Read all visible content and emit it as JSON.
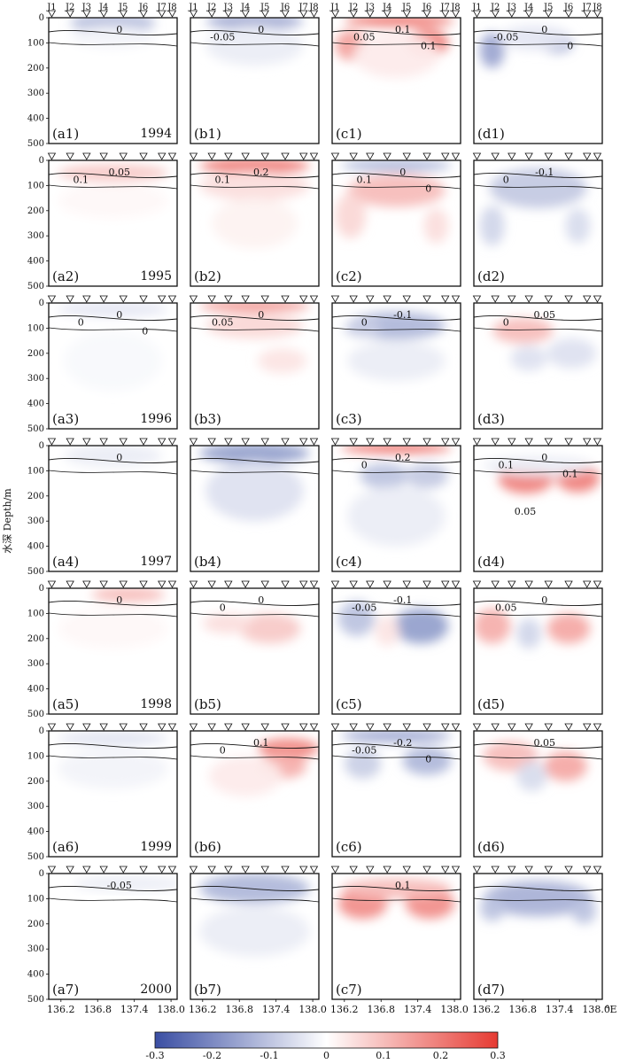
{
  "figure": {
    "ylabel": "水深 Depth/m",
    "depth_ticks": [
      "0",
      "100",
      "200",
      "300",
      "400",
      "500"
    ],
    "station_labels": [
      "J1",
      "J2",
      "J3",
      "J4",
      "J5",
      "J6",
      "J7",
      "J8"
    ],
    "lon_ticks": [
      "136.2",
      "136.8",
      "137.4",
      "138.0"
    ],
    "lon_unit": "°E"
  },
  "colorbar": {
    "ticks": [
      "-0.3",
      "-0.2",
      "-0.1",
      "0",
      "0.1",
      "0.2",
      "0.3"
    ],
    "min_color": "#3a4ea3",
    "mid_color": "#ffffff",
    "max_color": "#e63a32"
  },
  "panels": [
    {
      "id": "a1",
      "label": "(a1)",
      "year": "1994",
      "contours": [
        {
          "text": "0"
        }
      ]
    },
    {
      "id": "b1",
      "label": "(b1)",
      "contours": [
        {
          "text": "0"
        },
        {
          "text": "-0.05"
        }
      ]
    },
    {
      "id": "c1",
      "label": "(c1)",
      "contours": [
        {
          "text": "0.1"
        },
        {
          "text": "0.05"
        },
        {
          "text": "0.1"
        }
      ]
    },
    {
      "id": "d1",
      "label": "(d1)",
      "contours": [
        {
          "text": "0"
        },
        {
          "text": "-0.05"
        },
        {
          "text": "0"
        }
      ]
    },
    {
      "id": "a2",
      "label": "(a2)",
      "year": "1995",
      "contours": [
        {
          "text": "0.05"
        },
        {
          "text": "0.1"
        }
      ]
    },
    {
      "id": "b2",
      "label": "(b2)",
      "contours": [
        {
          "text": "0.2"
        },
        {
          "text": "0.1"
        }
      ]
    },
    {
      "id": "c2",
      "label": "(c2)",
      "contours": [
        {
          "text": "0"
        },
        {
          "text": "0.1"
        },
        {
          "text": "0"
        }
      ]
    },
    {
      "id": "d2",
      "label": "(d2)",
      "contours": [
        {
          "text": "-0.1"
        },
        {
          "text": "0"
        }
      ]
    },
    {
      "id": "a3",
      "label": "(a3)",
      "year": "1996",
      "contours": [
        {
          "text": "0"
        },
        {
          "text": "0"
        },
        {
          "text": "0"
        }
      ]
    },
    {
      "id": "b3",
      "label": "(b3)",
      "contours": [
        {
          "text": "0"
        },
        {
          "text": "0.05"
        }
      ]
    },
    {
      "id": "c3",
      "label": "(c3)",
      "contours": [
        {
          "text": "-0.1"
        },
        {
          "text": "0"
        }
      ]
    },
    {
      "id": "d3",
      "label": "(d3)",
      "contours": [
        {
          "text": "0.05"
        },
        {
          "text": "0"
        }
      ]
    },
    {
      "id": "a4",
      "label": "(a4)",
      "year": "1997",
      "contours": [
        {
          "text": "0"
        }
      ]
    },
    {
      "id": "b4",
      "label": "(b4)",
      "contours": []
    },
    {
      "id": "c4",
      "label": "(c4)",
      "contours": [
        {
          "text": "0.2"
        },
        {
          "text": "0"
        }
      ]
    },
    {
      "id": "d4",
      "label": "(d4)",
      "contours": [
        {
          "text": "0"
        },
        {
          "text": "0.1"
        },
        {
          "text": "0.1"
        },
        {
          "text": "0.05"
        }
      ]
    },
    {
      "id": "a5",
      "label": "(a5)",
      "year": "1998",
      "contours": [
        {
          "text": "0"
        }
      ]
    },
    {
      "id": "b5",
      "label": "(b5)",
      "contours": [
        {
          "text": "0"
        },
        {
          "text": "0"
        }
      ]
    },
    {
      "id": "c5",
      "label": "(c5)",
      "contours": [
        {
          "text": "-0.1"
        },
        {
          "text": "-0.05"
        }
      ]
    },
    {
      "id": "d5",
      "label": "(d5)",
      "contours": [
        {
          "text": "0"
        },
        {
          "text": "0.05"
        }
      ]
    },
    {
      "id": "a6",
      "label": "(a6)",
      "year": "1999",
      "contours": []
    },
    {
      "id": "b6",
      "label": "(b6)",
      "contours": [
        {
          "text": "0.1"
        },
        {
          "text": "0"
        }
      ]
    },
    {
      "id": "c6",
      "label": "(c6)",
      "contours": [
        {
          "text": "-0.2"
        },
        {
          "text": "-0.05"
        },
        {
          "text": "0"
        }
      ]
    },
    {
      "id": "d6",
      "label": "(d6)",
      "contours": [
        {
          "text": "0.05"
        }
      ]
    },
    {
      "id": "a7",
      "label": "(a7)",
      "year": "2000",
      "contours": [
        {
          "text": "-0.05"
        }
      ]
    },
    {
      "id": "b7",
      "label": "(b7)",
      "contours": []
    },
    {
      "id": "c7",
      "label": "(c7)",
      "contours": [
        {
          "text": "0.1"
        }
      ]
    },
    {
      "id": "d7",
      "label": "(d7)",
      "contours": []
    }
  ],
  "chart_data": {
    "type": "heatmap",
    "xlabel": "°E",
    "ylabel": "水深 Depth/m",
    "xlim": [
      136.0,
      138.1
    ],
    "ylim": [
      500,
      0
    ],
    "x_ticks": [
      136.2,
      136.8,
      137.4,
      138.0
    ],
    "y_ticks": [
      0,
      100,
      200,
      300,
      400,
      500
    ],
    "color_range": [
      -0.3,
      0.3
    ],
    "colorbar_ticks": [
      -0.3,
      -0.2,
      -0.1,
      0,
      0.1,
      0.2,
      0.3
    ],
    "station_x": [
      136.05,
      136.35,
      136.62,
      136.9,
      137.22,
      137.55,
      137.85,
      138.02
    ],
    "panels": [
      {
        "panel": "a1",
        "blobs": [
          [
            137.05,
            20,
            0.7,
            35,
            -0.12
          ],
          [
            137.05,
            75,
            0.7,
            45,
            -0.02
          ]
        ]
      },
      {
        "panel": "b1",
        "blobs": [
          [
            137.05,
            15,
            0.8,
            30,
            -0.15
          ],
          [
            137.05,
            110,
            0.8,
            80,
            -0.03
          ]
        ]
      },
      {
        "panel": "c1",
        "blobs": [
          [
            137.1,
            12,
            0.9,
            25,
            0.2
          ],
          [
            136.3,
            110,
            0.25,
            60,
            0.14
          ],
          [
            137.55,
            100,
            0.35,
            55,
            0.2
          ],
          [
            137.05,
            150,
            0.7,
            90,
            0.03
          ]
        ]
      },
      {
        "panel": "d1",
        "blobs": [
          [
            136.3,
            130,
            0.2,
            70,
            -0.15
          ],
          [
            137.35,
            100,
            0.28,
            40,
            -0.14
          ],
          [
            137.0,
            80,
            0.6,
            50,
            -0.04
          ]
        ]
      },
      {
        "panel": "a2",
        "blobs": [
          [
            137.05,
            50,
            0.9,
            35,
            0.08
          ],
          [
            137.05,
            160,
            0.9,
            70,
            0.01
          ]
        ]
      },
      {
        "panel": "b2",
        "blobs": [
          [
            137.05,
            22,
            0.9,
            28,
            0.22
          ],
          [
            137.05,
            100,
            0.9,
            60,
            0.05
          ],
          [
            137.05,
            250,
            0.7,
            100,
            0.02
          ]
        ]
      },
      {
        "panel": "c2",
        "blobs": [
          [
            137.05,
            20,
            0.9,
            25,
            -0.12
          ],
          [
            137.05,
            120,
            0.8,
            65,
            0.1
          ],
          [
            136.3,
            220,
            0.25,
            90,
            0.06
          ],
          [
            137.7,
            260,
            0.2,
            70,
            0.05
          ]
        ]
      },
      {
        "panel": "d2",
        "blobs": [
          [
            137.05,
            110,
            0.8,
            80,
            -0.09
          ],
          [
            136.3,
            260,
            0.2,
            80,
            -0.07
          ],
          [
            137.7,
            260,
            0.2,
            70,
            -0.06
          ]
        ]
      },
      {
        "panel": "a3",
        "blobs": [
          [
            137.05,
            25,
            0.9,
            30,
            -0.04
          ],
          [
            137.05,
            230,
            0.8,
            120,
            -0.01
          ]
        ]
      },
      {
        "panel": "b3",
        "blobs": [
          [
            137.05,
            12,
            0.9,
            20,
            0.18
          ],
          [
            137.05,
            90,
            0.8,
            50,
            0.06
          ],
          [
            137.5,
            230,
            0.4,
            50,
            0.04
          ]
        ]
      },
      {
        "panel": "c3",
        "blobs": [
          [
            137.05,
            90,
            0.8,
            55,
            -0.12
          ],
          [
            136.5,
            100,
            0.3,
            35,
            -0.08
          ],
          [
            137.05,
            230,
            0.8,
            80,
            -0.03
          ]
        ]
      },
      {
        "panel": "d3",
        "blobs": [
          [
            136.8,
            110,
            0.5,
            50,
            0.1
          ],
          [
            137.6,
            200,
            0.4,
            60,
            -0.05
          ],
          [
            136.9,
            220,
            0.3,
            50,
            -0.05
          ]
        ]
      },
      {
        "panel": "a4",
        "blobs": [
          [
            137.05,
            40,
            0.8,
            45,
            -0.03
          ]
        ]
      },
      {
        "panel": "b4",
        "blobs": [
          [
            137.05,
            30,
            0.9,
            40,
            -0.16
          ],
          [
            137.05,
            180,
            0.8,
            120,
            -0.05
          ]
        ]
      },
      {
        "panel": "c4",
        "blobs": [
          [
            137.05,
            10,
            0.9,
            20,
            0.22
          ],
          [
            136.85,
            120,
            0.4,
            50,
            -0.1
          ],
          [
            137.55,
            120,
            0.35,
            50,
            -0.09
          ],
          [
            137.05,
            280,
            0.8,
            120,
            -0.03
          ]
        ]
      },
      {
        "panel": "d4",
        "blobs": [
          [
            136.85,
            130,
            0.45,
            60,
            0.19
          ],
          [
            137.7,
            130,
            0.35,
            55,
            0.19
          ],
          [
            137.05,
            80,
            0.9,
            40,
            -0.03
          ]
        ]
      },
      {
        "panel": "a5",
        "blobs": [
          [
            137.3,
            25,
            0.6,
            30,
            0.1
          ],
          [
            137.05,
            160,
            0.9,
            80,
            0.01
          ]
        ]
      },
      {
        "panel": "b5",
        "blobs": [
          [
            137.3,
            160,
            0.5,
            60,
            0.08
          ],
          [
            136.6,
            140,
            0.4,
            40,
            0.05
          ]
        ]
      },
      {
        "panel": "c5",
        "blobs": [
          [
            136.4,
            120,
            0.3,
            70,
            -0.1
          ],
          [
            137.45,
            150,
            0.45,
            70,
            -0.16
          ],
          [
            136.9,
            170,
            0.2,
            60,
            0.04
          ]
        ]
      },
      {
        "panel": "d5",
        "blobs": [
          [
            136.3,
            150,
            0.3,
            70,
            0.12
          ],
          [
            137.55,
            160,
            0.35,
            60,
            0.13
          ],
          [
            136.9,
            180,
            0.2,
            60,
            -0.07
          ]
        ]
      },
      {
        "panel": "a6",
        "blobs": [
          [
            137.05,
            30,
            0.9,
            25,
            -0.05
          ],
          [
            137.05,
            150,
            0.9,
            80,
            -0.02
          ]
        ]
      },
      {
        "panel": "b6",
        "blobs": [
          [
            137.6,
            70,
            0.5,
            40,
            0.18
          ],
          [
            137.5,
            140,
            0.4,
            50,
            0.12
          ],
          [
            136.9,
            180,
            0.6,
            80,
            0.03
          ]
        ]
      },
      {
        "panel": "c6",
        "blobs": [
          [
            137.05,
            20,
            0.9,
            25,
            -0.15
          ],
          [
            136.5,
            130,
            0.3,
            60,
            -0.08
          ],
          [
            137.55,
            120,
            0.4,
            55,
            -0.12
          ]
        ]
      },
      {
        "panel": "d6",
        "blobs": [
          [
            136.6,
            100,
            0.45,
            60,
            0.1
          ],
          [
            137.5,
            140,
            0.35,
            60,
            0.13
          ],
          [
            136.95,
            180,
            0.25,
            60,
            -0.06
          ]
        ]
      },
      {
        "panel": "a7",
        "blobs": [
          [
            137.3,
            40,
            0.9,
            30,
            -0.03
          ]
        ]
      },
      {
        "panel": "b7",
        "blobs": [
          [
            137.05,
            60,
            0.9,
            60,
            -0.12
          ],
          [
            137.05,
            230,
            0.9,
            100,
            -0.03
          ]
        ]
      },
      {
        "panel": "c7",
        "blobs": [
          [
            136.5,
            120,
            0.4,
            60,
            0.17
          ],
          [
            137.6,
            120,
            0.4,
            60,
            0.17
          ],
          [
            137.05,
            60,
            0.9,
            40,
            0.1
          ]
        ]
      },
      {
        "panel": "d7",
        "blobs": [
          [
            137.05,
            100,
            0.9,
            70,
            -0.13
          ],
          [
            136.3,
            140,
            0.2,
            50,
            -0.1
          ],
          [
            137.8,
            150,
            0.2,
            50,
            -0.1
          ]
        ]
      }
    ]
  }
}
